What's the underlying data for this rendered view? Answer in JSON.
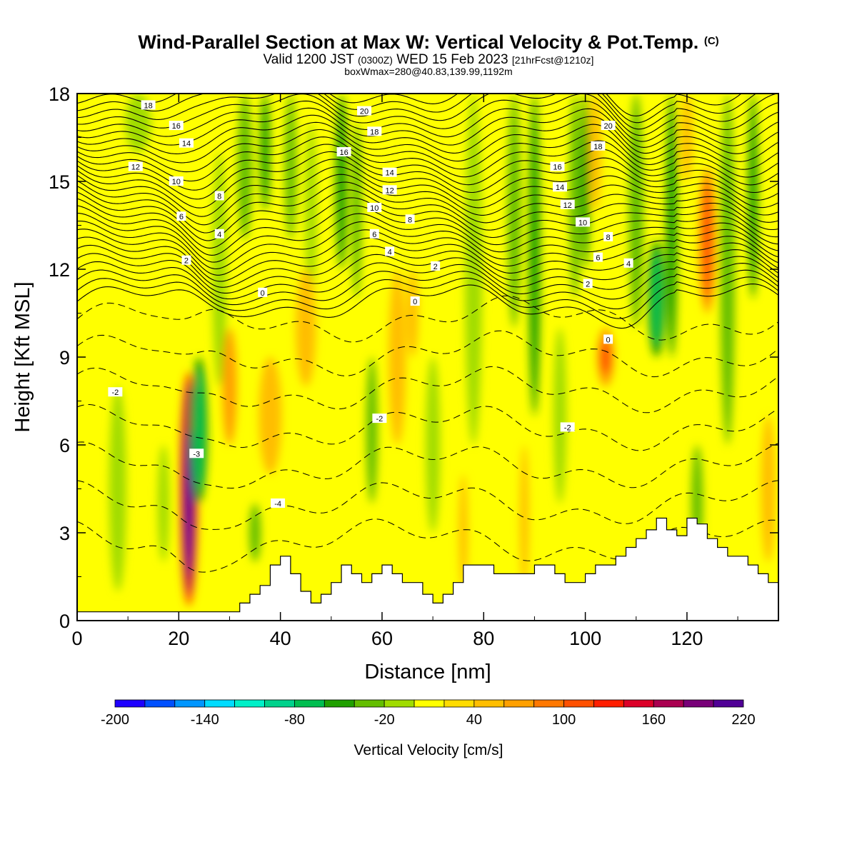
{
  "chart_data": {
    "type": "heatmap",
    "title": "Wind-Parallel Section at Max W: Vertical Velocity & Pot.Temp.",
    "title_mark": "(C)",
    "subtitle": {
      "valid_prefix": "Valid 1200 JST",
      "utc": "(0300Z)",
      "date": "WED 15 Feb 2023",
      "forecast": "[21hrFcst@1210z]"
    },
    "box_line": "boxWmax=280@40.83,139.99,1192m",
    "xlabel": "Distance [nm]",
    "ylabel": "Height [Kft MSL]",
    "xlim": [
      0,
      138
    ],
    "ylim": [
      0,
      18
    ],
    "x_ticks": [
      "0",
      "20",
      "40",
      "60",
      "80",
      "100",
      "120"
    ],
    "y_ticks": [
      "0",
      "3",
      "6",
      "9",
      "12",
      "15",
      "18"
    ],
    "colorbar": {
      "label": "Vertical Velocity [cm/s]",
      "min": -200,
      "max": 220,
      "step": 20,
      "tick_labels": [
        "-200",
        "-140",
        "-80",
        "-20",
        "40",
        "100",
        "160",
        "220"
      ],
      "colors": [
        "#1e00ff",
        "#0050ff",
        "#0096ff",
        "#00dcff",
        "#00f0c8",
        "#00d28c",
        "#00be50",
        "#20a000",
        "#64be00",
        "#a0dc00",
        "#ffff00",
        "#ffdc00",
        "#ffbe00",
        "#ffa000",
        "#ff7800",
        "#ff5000",
        "#ff1e00",
        "#dc0028",
        "#aa0050",
        "#780078",
        "#500096"
      ]
    },
    "dominant_fill_color": "#ffff00",
    "features": [
      {
        "name": "updraft",
        "x": 22,
        "y_range": [
          0.5,
          8.5
        ],
        "value": 220
      },
      {
        "name": "updraft",
        "x": 124,
        "y_range": [
          10.5,
          15.5
        ],
        "value": 100
      },
      {
        "name": "updraft",
        "x": 104,
        "y_range": [
          8,
          10
        ],
        "value": 100
      },
      {
        "name": "downdraft",
        "x": 114,
        "y_range": [
          9,
          13
        ],
        "value": -80
      },
      {
        "name": "downdraft",
        "x": 24,
        "y_range": [
          4,
          9
        ],
        "value": -80
      }
    ],
    "theta_contour_labels": [
      {
        "text": "18",
        "x": 14,
        "y": 17.6
      },
      {
        "text": "16",
        "x": 19.5,
        "y": 16.9
      },
      {
        "text": "14",
        "x": 21.5,
        "y": 16.3
      },
      {
        "text": "12",
        "x": 11.5,
        "y": 15.5
      },
      {
        "text": "10",
        "x": 19.5,
        "y": 15
      },
      {
        "text": "8",
        "x": 28,
        "y": 14.5
      },
      {
        "text": "6",
        "x": 20.5,
        "y": 13.8
      },
      {
        "text": "4",
        "x": 28,
        "y": 13.2
      },
      {
        "text": "2",
        "x": 21.5,
        "y": 12.3
      },
      {
        "text": "0",
        "x": 36.5,
        "y": 11.2
      },
      {
        "text": "20",
        "x": 56.5,
        "y": 17.4
      },
      {
        "text": "18",
        "x": 58.5,
        "y": 16.7
      },
      {
        "text": "16",
        "x": 52.5,
        "y": 16
      },
      {
        "text": "14",
        "x": 61.5,
        "y": 15.3
      },
      {
        "text": "12",
        "x": 61.5,
        "y": 14.7
      },
      {
        "text": "10",
        "x": 58.5,
        "y": 14.1
      },
      {
        "text": "8",
        "x": 65.5,
        "y": 13.7
      },
      {
        "text": "6",
        "x": 58.5,
        "y": 13.2
      },
      {
        "text": "4",
        "x": 61.5,
        "y": 12.6
      },
      {
        "text": "2",
        "x": 70.5,
        "y": 12.1
      },
      {
        "text": "0",
        "x": 66.5,
        "y": 10.9
      },
      {
        "text": "20",
        "x": 104.5,
        "y": 16.9
      },
      {
        "text": "18",
        "x": 102.5,
        "y": 16.2
      },
      {
        "text": "16",
        "x": 94.5,
        "y": 15.5
      },
      {
        "text": "14",
        "x": 95,
        "y": 14.8
      },
      {
        "text": "12",
        "x": 96.5,
        "y": 14.2
      },
      {
        "text": "10",
        "x": 99.5,
        "y": 13.6
      },
      {
        "text": "8",
        "x": 104.5,
        "y": 13.1
      },
      {
        "text": "6",
        "x": 102.5,
        "y": 12.4
      },
      {
        "text": "4",
        "x": 108.5,
        "y": 12.2
      },
      {
        "text": "2",
        "x": 100.5,
        "y": 11.5
      },
      {
        "text": "0",
        "x": 104.5,
        "y": 9.6
      },
      {
        "text": "-2",
        "x": 7.5,
        "y": 7.8
      },
      {
        "text": "-2",
        "x": 59.5,
        "y": 6.9
      },
      {
        "text": "-2",
        "x": 96.5,
        "y": 6.6
      },
      {
        "text": "-3",
        "x": 23.5,
        "y": 5.7
      },
      {
        "text": "-4",
        "x": 39.5,
        "y": 4
      }
    ],
    "terrain_profile": {
      "x": [
        0,
        30,
        32,
        34,
        36,
        38,
        40,
        42,
        44,
        46,
        48,
        50,
        52,
        54,
        56,
        58,
        60,
        62,
        64,
        66,
        68,
        70,
        72,
        74,
        76,
        78,
        80,
        82,
        84,
        86,
        88,
        90,
        92,
        94,
        96,
        98,
        100,
        102,
        104,
        106,
        108,
        110,
        112,
        114,
        116,
        118,
        120,
        122,
        124,
        126,
        128,
        130,
        132,
        134,
        136,
        138
      ],
      "height": [
        0.3,
        0.3,
        0.6,
        0.9,
        1.2,
        1.9,
        2.2,
        1.6,
        1,
        0.6,
        0.9,
        1.3,
        1.9,
        1.6,
        1.3,
        1.6,
        1.9,
        1.6,
        1.3,
        1.3,
        0.9,
        0.6,
        0.9,
        1.3,
        1.9,
        1.9,
        1.9,
        1.6,
        1.6,
        1.6,
        1.6,
        1.9,
        1.9,
        1.6,
        1.3,
        1.3,
        1.6,
        1.9,
        1.9,
        2.2,
        2.5,
        2.8,
        3.1,
        3.5,
        3.1,
        2.9,
        3.5,
        3.3,
        2.8,
        2.5,
        2.2,
        2.2,
        1.9,
        1.6,
        1.3,
        1.3
      ]
    }
  }
}
